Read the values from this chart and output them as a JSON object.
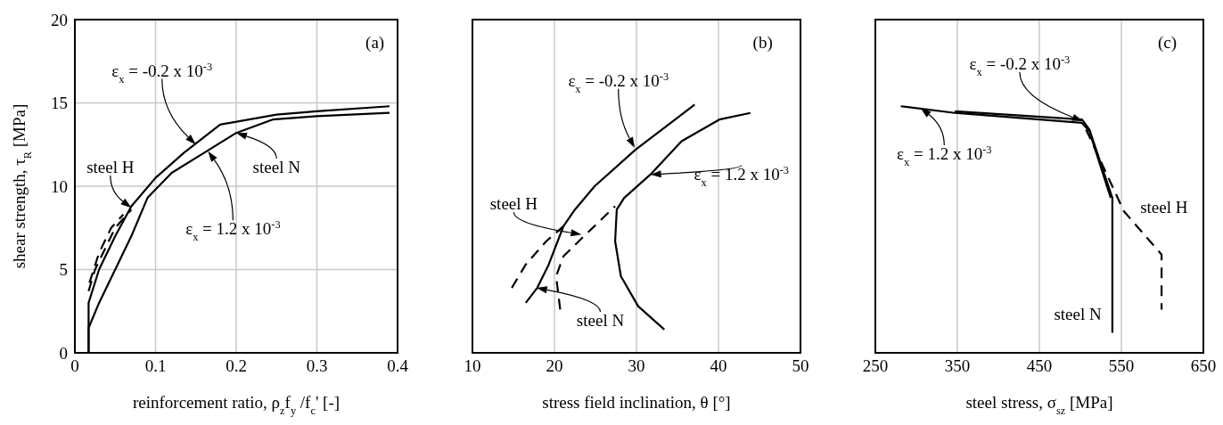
{
  "chart_data": [
    {
      "type": "line",
      "xlabel": "reinforcement ratio, ρ$_{z}$f$_{y}$ /f$_{c}$' [-]",
      "ylabel": "shear strength, τ$_{R}$ [MPa]",
      "xlim": [
        0,
        0.4
      ],
      "xticks": [
        0,
        0.1,
        0.2,
        0.3,
        0.4
      ],
      "ylim": [
        0,
        20
      ],
      "yticks": [
        0,
        5,
        10,
        15,
        20
      ],
      "grid": true,
      "series": [
        {
          "color": "#000000",
          "line_style": "solid",
          "x": [
            0.017,
            0.017,
            0.03,
            0.05,
            0.07,
            0.1,
            0.135,
            0.18,
            0.25,
            0.3,
            0.39
          ],
          "values": [
            0,
            3,
            5,
            7,
            8.8,
            10.5,
            12,
            13.7,
            14.3,
            14.5,
            14.8
          ]
        },
        {
          "color": "#000000",
          "line_style": "solid",
          "x": [
            0.017,
            0.017,
            0.03,
            0.05,
            0.07,
            0.09,
            0.12,
            0.16,
            0.2,
            0.245,
            0.3,
            0.39
          ],
          "values": [
            0,
            1.5,
            3,
            5,
            7,
            9.3,
            10.8,
            12,
            13.2,
            14,
            14.2,
            14.4
          ]
        },
        {
          "color": "#000000",
          "line_style": "dashed",
          "x": [
            0.018,
            0.03,
            0.045,
            0.06
          ],
          "values": [
            4.2,
            6,
            7.5,
            8.3
          ]
        },
        {
          "color": "#000000",
          "line_style": "dashed",
          "x": [
            0.017,
            0.025,
            0.05,
            0.07
          ],
          "values": [
            3.7,
            5,
            7.5,
            8.6
          ]
        }
      ],
      "annotations": [
        "ε$_{x}$ = -0.2 x 10$^{-3}$",
        {
          "text": "steel H",
          "x": 0.07,
          "y": 8.7
        },
        {
          "text": "steel N",
          "x": 0.2,
          "y": 13.2
        },
        "ε$_{x}$ = 1.2 x 10$^{-3}$",
        "(a)"
      ]
    },
    {
      "type": "line",
      "xlabel": "stress field inclination, θ [°]",
      "xlim": [
        10,
        50
      ],
      "xticks": [
        10,
        20,
        30,
        40,
        50
      ],
      "ylim": [
        0,
        20
      ],
      "yticks": [
        0,
        5,
        10,
        15,
        20
      ],
      "grid": true,
      "tick_labels": "x",
      "series": [
        {
          "color": "#000000",
          "line_style": "solid",
          "x": [
            16.5,
            17.9,
            19.3,
            21.1,
            22.5,
            24.9,
            29.9,
            37.1
          ],
          "values": [
            3,
            3.9,
            5.3,
            7.6,
            8.6,
            10,
            12.2,
            14.9
          ]
        },
        {
          "color": "#000000",
          "line_style": "solid",
          "x": [
            33.4,
            30.2,
            28.1,
            27.4,
            27.6,
            28.5,
            31.7,
            35.5,
            40.1,
            43.9
          ],
          "values": [
            1.4,
            2.8,
            4.6,
            6.7,
            8.6,
            9.3,
            10.7,
            12.7,
            14,
            14.4
          ]
        },
        {
          "color": "#000000",
          "line_style": "dashed",
          "x": [
            14.8,
            16.5,
            19,
            21.1
          ],
          "values": [
            3.9,
            5.3,
            6.7,
            7.6
          ]
        },
        {
          "color": "#000000",
          "line_style": "dashed",
          "x": [
            20.7,
            20.2,
            21.1,
            23.6,
            27.4
          ],
          "values": [
            2.6,
            4.6,
            5.8,
            7,
            8.8
          ]
        }
      ],
      "annotations": [
        "ε$_{x}$ = -0.2 x 10$^{-3}$",
        {
          "text": "ε$_{x}$ = 1.2 x 10$^{-3}$",
          "x": 31.7,
          "y": 10.7
        },
        {
          "text": "steel H",
          "x": 23.3,
          "y": 7.1
        },
        {
          "text": "steel N",
          "x": 17.8,
          "y": 3.9
        },
        "(b)"
      ]
    },
    {
      "type": "line",
      "xlabel": "steel stress, σ$_{sz}$ [MPa]",
      "xlim": [
        250,
        650
      ],
      "xticks": [
        250,
        350,
        450,
        550,
        650
      ],
      "ylim": [
        0,
        20
      ],
      "yticks": [
        0,
        5,
        10,
        15,
        20
      ],
      "grid": true,
      "tick_labels": "x",
      "series": [
        {
          "color": "#000000",
          "line_style": "solid",
          "x": [
            347,
            502,
            511,
            539,
            539
          ],
          "values": [
            14.5,
            14,
            13.4,
            9.3,
            1.2
          ]
        },
        {
          "color": "#000000",
          "line_style": "solid",
          "x": [
            281,
            347,
            502,
            511,
            537
          ],
          "values": [
            14.8,
            14.4,
            13.8,
            13.3,
            9.3
          ]
        },
        {
          "color": "#000000",
          "line_style": "dashed",
          "x": [
            507,
            553,
            599,
            599
          ],
          "values": [
            13.4,
            8.5,
            5.9,
            2.6
          ]
        }
      ],
      "annotations": [
        {
          "text": "ε$_{x}$ = -0.2 x 10$^{-3}$",
          "x": 503,
          "y": 13.9
        },
        {
          "text": "ε$_{x}$ = 1.2 x 10$^{-3}$",
          "x": 305,
          "y": 14.7
        },
        "steel H",
        "steel N",
        "(c)"
      ]
    }
  ]
}
